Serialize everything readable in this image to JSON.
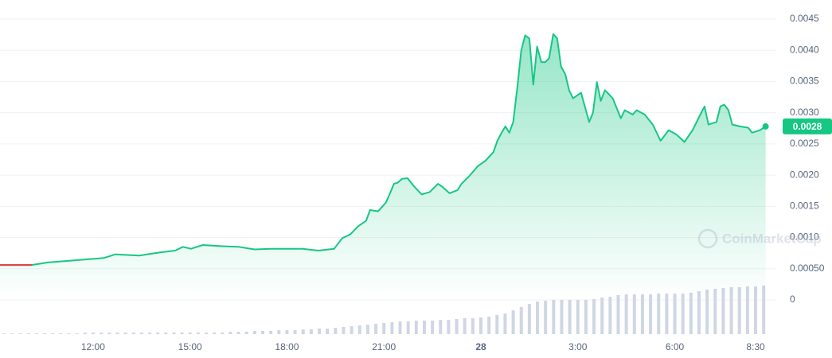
{
  "chart_data": {
    "type": "line",
    "x": [
      9.12,
      10.1,
      10.6,
      11.58,
      12.32,
      12.69,
      13.06,
      13.43,
      14.05,
      14.54,
      14.78,
      15.03,
      15.4,
      16.01,
      16.51,
      17.0,
      17.49,
      17.99,
      18.48,
      18.97,
      19.46,
      19.71,
      19.96,
      20.2,
      20.45,
      20.57,
      20.82,
      21.06,
      21.19,
      21.31,
      21.43,
      21.56,
      21.73,
      21.93,
      22.17,
      22.42,
      22.67,
      22.79,
      23.03,
      23.28,
      23.4,
      23.65,
      23.9,
      24.14,
      24.39,
      24.51,
      24.64,
      24.76,
      24.88,
      25.0,
      25.13,
      25.25,
      25.37,
      25.5,
      25.62,
      25.74,
      25.87,
      25.99,
      26.11,
      26.24,
      26.36,
      26.48,
      26.61,
      26.73,
      26.85,
      27.1,
      27.35,
      27.47,
      27.59,
      27.71,
      27.84,
      28.08,
      28.33,
      28.45,
      28.7,
      28.82,
      29.07,
      29.32,
      29.56,
      29.81,
      30.05,
      30.3,
      30.55,
      30.79,
      30.92,
      31.04,
      31.29,
      31.41,
      31.53,
      31.66,
      31.78,
      32.02,
      32.27,
      32.39,
      32.64,
      32.81
    ],
    "series": [
      {
        "color": "#16c784",
        "down_color": "#ea3943",
        "values": [
          0.00056,
          0.00056,
          0.0006,
          0.00064,
          0.00067,
          0.00073,
          0.00072,
          0.00071,
          0.00076,
          0.00079,
          0.00085,
          0.00082,
          0.00088,
          0.00086,
          0.00085,
          0.00081,
          0.00082,
          0.00082,
          0.00082,
          0.00079,
          0.00082,
          0.00099,
          0.00105,
          0.00118,
          0.00127,
          0.00144,
          0.00142,
          0.00156,
          0.00171,
          0.00186,
          0.00188,
          0.00194,
          0.00195,
          0.00182,
          0.00169,
          0.00173,
          0.00186,
          0.00182,
          0.00171,
          0.00176,
          0.00186,
          0.00199,
          0.00214,
          0.00223,
          0.00237,
          0.00255,
          0.00268,
          0.00278,
          0.00268,
          0.00285,
          0.00342,
          0.004,
          0.00424,
          0.00419,
          0.00345,
          0.00406,
          0.00381,
          0.00381,
          0.00387,
          0.00426,
          0.00419,
          0.00374,
          0.00362,
          0.00336,
          0.00323,
          0.00332,
          0.00285,
          0.003,
          0.00349,
          0.00319,
          0.00336,
          0.00323,
          0.00291,
          0.00304,
          0.00297,
          0.00304,
          0.00297,
          0.00281,
          0.00255,
          0.00272,
          0.00265,
          0.00253,
          0.00272,
          0.00297,
          0.0031,
          0.00281,
          0.00285,
          0.0031,
          0.00313,
          0.00304,
          0.00281,
          0.00278,
          0.00276,
          0.00268,
          0.00272,
          0.00278
        ]
      }
    ],
    "current_price_label": "0.0028",
    "volume": {
      "color": "#cfd6e4",
      "x_start": 9.25,
      "x_step": 0.25,
      "values": [
        1,
        1,
        1,
        1,
        1,
        1,
        1,
        1,
        1,
        1,
        2,
        2,
        2,
        2,
        2,
        2,
        2,
        2,
        2,
        2,
        2,
        2,
        2,
        2,
        2,
        2,
        2,
        2,
        3,
        3,
        3,
        4,
        4,
        4,
        5,
        5,
        5,
        6,
        6,
        7,
        7,
        8,
        9,
        10,
        11,
        12,
        13,
        14,
        15,
        16,
        16,
        17,
        17,
        17,
        18,
        18,
        19,
        20,
        20,
        21,
        22,
        24,
        26,
        30,
        34,
        38,
        41,
        42,
        43,
        43,
        43,
        43,
        43,
        44,
        46,
        47,
        49,
        50,
        50,
        50,
        50,
        51,
        51,
        51,
        51,
        52,
        54,
        56,
        57,
        58,
        59,
        59,
        60,
        60,
        61
      ]
    },
    "xlim": [
      9.12,
      33.14
    ],
    "xticks": [
      {
        "value": 12,
        "label": "12:00"
      },
      {
        "value": 15,
        "label": "15:00"
      },
      {
        "value": 18,
        "label": "18:00"
      },
      {
        "value": 21,
        "label": "21:00"
      },
      {
        "value": 24,
        "label": "28",
        "bold": true
      },
      {
        "value": 27,
        "label": "3:00"
      },
      {
        "value": 30,
        "label": "6:00"
      },
      {
        "value": 32.5,
        "label": "8:30"
      }
    ],
    "ylim": [
      0,
      0.0045
    ],
    "yticks": [
      0,
      {
        "value": 0.0005,
        "label": "0.00050"
      },
      {
        "value": 0.001,
        "label": "0.0010"
      },
      0.0015,
      {
        "value": 0.002,
        "label": "0.0020"
      },
      0.0025,
      {
        "value": 0.003,
        "label": "0.0030"
      },
      0.0035,
      {
        "value": 0.004,
        "label": "0.0040"
      },
      0.0045
    ],
    "grid": true,
    "watermark": "CoinMarketCap"
  }
}
